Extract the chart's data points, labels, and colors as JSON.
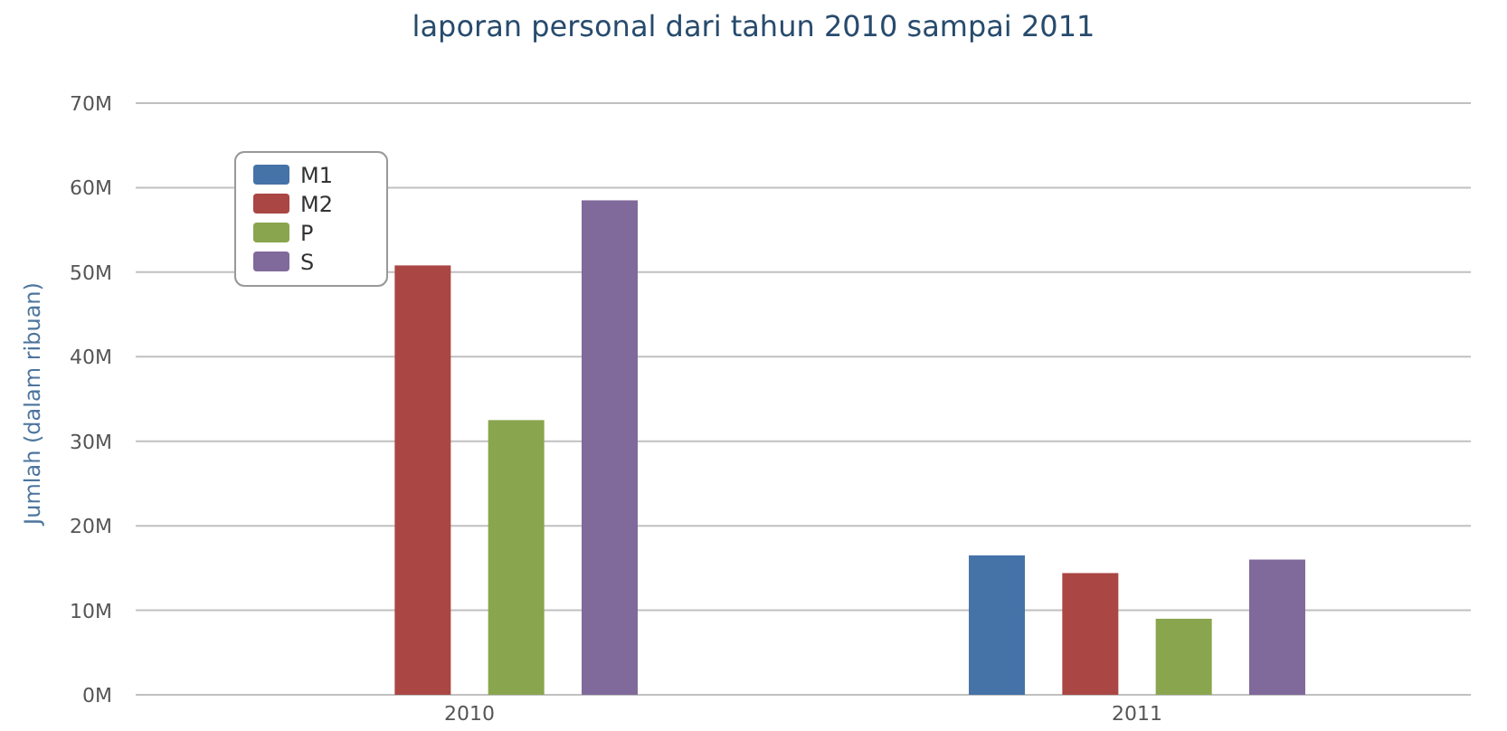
{
  "chart_data": {
    "type": "bar",
    "title": "laporan personal dari tahun 2010 sampai 2011",
    "ylabel": "Jumlah (dalam ribuan)",
    "categories": [
      "2010",
      "2011"
    ],
    "series": [
      {
        "name": "M1",
        "color": "#4572a7",
        "values": [
          null,
          16.5
        ]
      },
      {
        "name": "M2",
        "color": "#aa4643",
        "values": [
          50.8,
          14.4
        ]
      },
      {
        "name": "P",
        "color": "#89a54e",
        "values": [
          32.5,
          9.0
        ]
      },
      {
        "name": "S",
        "color": "#80699b",
        "values": [
          58.5,
          16.0
        ]
      }
    ],
    "ylim": [
      0,
      70
    ],
    "yticks": [
      {
        "value": 0,
        "label": "0M"
      },
      {
        "value": 10,
        "label": "10M"
      },
      {
        "value": 20,
        "label": "20M"
      },
      {
        "value": 30,
        "label": "30M"
      },
      {
        "value": 40,
        "label": "40M"
      },
      {
        "value": 50,
        "label": "50M"
      },
      {
        "value": 60,
        "label": "60M"
      },
      {
        "value": 70,
        "label": "70M"
      }
    ],
    "grid": "y",
    "legend": "top left"
  }
}
